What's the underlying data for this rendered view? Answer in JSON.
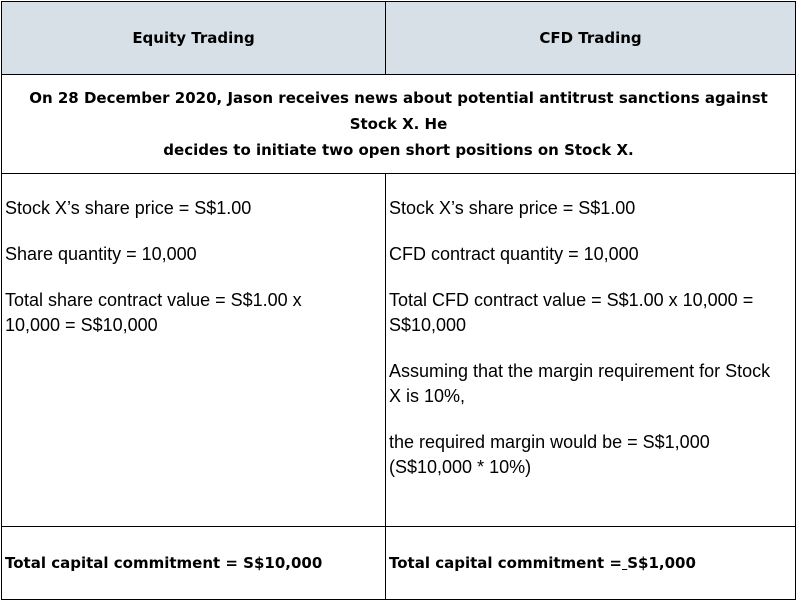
{
  "header": {
    "left": "Equity Trading",
    "right": "CFD Trading"
  },
  "scenario": {
    "line1": "On 28 December 2020, Jason receives news about potential antitrust sanctions against Stock X. He",
    "line2": "decides to initiate two open short positions on Stock X."
  },
  "equity": {
    "price": "Stock X’s share price = S$1.00",
    "quantity": "Share quantity = 10,000",
    "total_line1": "Total share contract value = S$1.00 x",
    "total_line2": "10,000 = S$10,000"
  },
  "cfd": {
    "price": "Stock X’s share price = S$1.00",
    "quantity": "CFD contract quantity = 10,000",
    "total_line1": "Total CFD contract value = S$1.00 x 10,000 =",
    "total_line2": "S$10,000",
    "margin_line1": "Assuming that the margin requirement for Stock",
    "margin_line2": "X is 10%,",
    "required_line1": "the required margin would be = S$1,000",
    "required_line2": "(S$10,000 * 10%)"
  },
  "totals": {
    "equity": "Total capital commitment = S$10,000",
    "cfd_prefix": "Total capital commitment =",
    "cfd_space": " ",
    "cfd_value": "S$1,000"
  }
}
